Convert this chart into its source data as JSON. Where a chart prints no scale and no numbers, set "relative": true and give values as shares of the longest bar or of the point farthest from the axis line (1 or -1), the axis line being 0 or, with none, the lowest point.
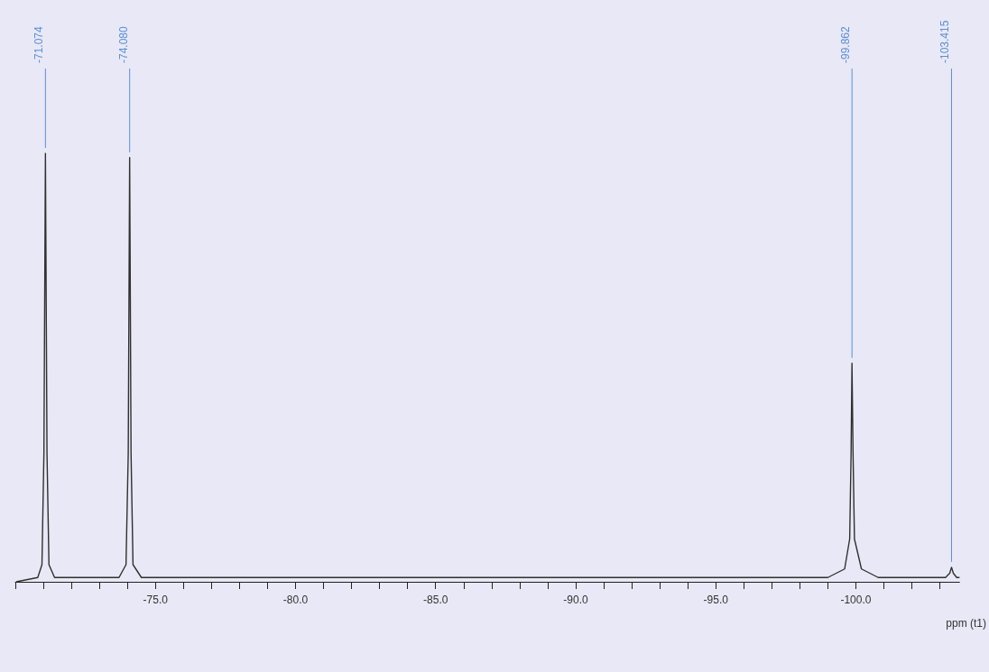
{
  "chart_data": {
    "type": "line",
    "xlabel": "ppm (t1)",
    "relative": true,
    "xlim": [
      -70.0,
      -103.7
    ],
    "xticks": [
      {
        "value": -70,
        "label": null
      },
      {
        "value": -71,
        "label": null
      },
      {
        "value": -72,
        "label": null
      },
      {
        "value": -73,
        "label": null
      },
      {
        "value": -74,
        "label": null
      },
      {
        "value": -75,
        "label": "-75.0"
      },
      {
        "value": -76,
        "label": null
      },
      {
        "value": -77,
        "label": null
      },
      {
        "value": -78,
        "label": null
      },
      {
        "value": -79,
        "label": null
      },
      {
        "value": -80,
        "label": "-80.0"
      },
      {
        "value": -81,
        "label": null
      },
      {
        "value": -82,
        "label": null
      },
      {
        "value": -83,
        "label": null
      },
      {
        "value": -84,
        "label": null
      },
      {
        "value": -85,
        "label": "-85.0"
      },
      {
        "value": -86,
        "label": null
      },
      {
        "value": -87,
        "label": null
      },
      {
        "value": -88,
        "label": null
      },
      {
        "value": -89,
        "label": null
      },
      {
        "value": -90,
        "label": "-90.0"
      },
      {
        "value": -91,
        "label": null
      },
      {
        "value": -92,
        "label": null
      },
      {
        "value": -93,
        "label": null
      },
      {
        "value": -94,
        "label": null
      },
      {
        "value": -95,
        "label": "-95.0"
      },
      {
        "value": -96,
        "label": null
      },
      {
        "value": -97,
        "label": null
      },
      {
        "value": -98,
        "label": null
      },
      {
        "value": -99,
        "label": null
      },
      {
        "value": -100,
        "label": "-100.0"
      },
      {
        "value": -101,
        "label": null
      },
      {
        "value": -102,
        "label": null
      },
      {
        "value": -103,
        "label": null
      }
    ],
    "grid": false,
    "marker": "none",
    "line_style": "solid",
    "series": [
      {
        "color": "#303030",
        "x": [
          -70.03,
          -70.8,
          -70.95,
          -71.02,
          -71.074,
          -71.13,
          -71.2,
          -71.4,
          -73.7,
          -73.95,
          -74.03,
          -74.08,
          -74.13,
          -74.2,
          -74.5,
          -99.0,
          -99.6,
          -99.78,
          -99.83,
          -99.862,
          -99.9,
          -99.95,
          -100.2,
          -100.8,
          -103.2,
          -103.35,
          -103.415,
          -103.48,
          -103.6,
          -103.7
        ],
        "values": [
          0,
          0.01,
          0.04,
          0.3,
          1,
          0.3,
          0.04,
          0.01,
          0.01,
          0.04,
          0.3,
          0.99,
          0.3,
          0.04,
          0.01,
          0.01,
          0.03,
          0.1,
          0.3,
          0.51,
          0.3,
          0.1,
          0.03,
          0.01,
          0.01,
          0.02,
          0.034,
          0.02,
          0.01,
          0.01
        ]
      }
    ],
    "annotations": [
      {
        "text": "-71.074",
        "x": -71.074,
        "y": 1
      },
      {
        "text": "-74.080",
        "x": -74.08,
        "y": 0.99
      },
      {
        "text": "-99.862",
        "x": -99.862,
        "y": 0.51
      },
      {
        "text": "-103.415",
        "x": -103.415,
        "y": 0.034
      }
    ]
  }
}
